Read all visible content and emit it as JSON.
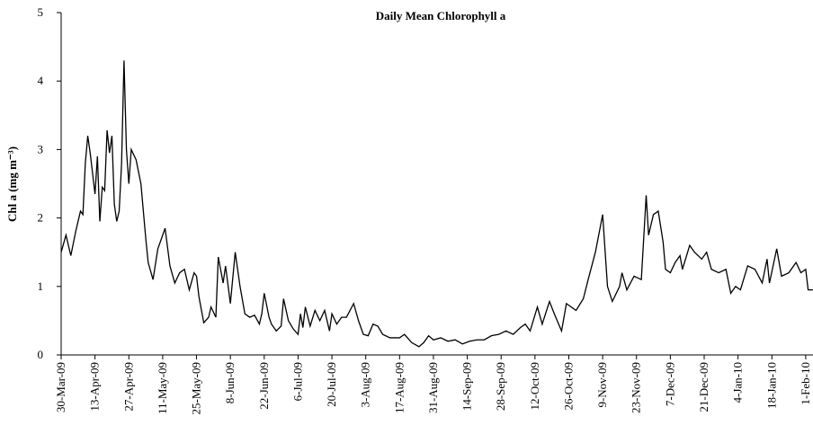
{
  "chart_data": {
    "type": "line",
    "title": "Daily Mean Chlorophyll a",
    "ylabel": "Chl a (mg m⁻³)",
    "color": "#000000",
    "x": [
      "2009-03-30",
      "2009-04-01",
      "2009-04-03",
      "2009-04-05",
      "2009-04-07",
      "2009-04-08",
      "2009-04-09",
      "2009-04-10",
      "2009-04-11",
      "2009-04-13",
      "2009-04-14",
      "2009-04-15",
      "2009-04-16",
      "2009-04-17",
      "2009-04-18",
      "2009-04-19",
      "2009-04-20",
      "2009-04-21",
      "2009-04-22",
      "2009-04-23",
      "2009-04-24",
      "2009-04-25",
      "2009-04-26",
      "2009-04-27",
      "2009-04-28",
      "2009-04-30",
      "2009-05-02",
      "2009-05-04",
      "2009-05-05",
      "2009-05-07",
      "2009-05-09",
      "2009-05-12",
      "2009-05-14",
      "2009-05-16",
      "2009-05-18",
      "2009-05-20",
      "2009-05-22",
      "2009-05-24",
      "2009-05-25",
      "2009-05-26",
      "2009-05-28",
      "2009-05-30",
      "2009-05-31",
      "2009-06-02",
      "2009-06-03",
      "2009-06-05",
      "2009-06-06",
      "2009-06-08",
      "2009-06-10",
      "2009-06-12",
      "2009-06-14",
      "2009-06-16",
      "2009-06-18",
      "2009-06-20",
      "2009-06-21",
      "2009-06-22",
      "2009-06-24",
      "2009-06-25",
      "2009-06-27",
      "2009-06-29",
      "2009-06-30",
      "2009-07-02",
      "2009-07-04",
      "2009-07-06",
      "2009-07-07",
      "2009-07-08",
      "2009-07-09",
      "2009-07-11",
      "2009-07-13",
      "2009-07-15",
      "2009-07-17",
      "2009-07-19",
      "2009-07-20",
      "2009-07-22",
      "2009-07-24",
      "2009-07-26",
      "2009-07-29",
      "2009-07-31",
      "2009-08-02",
      "2009-08-04",
      "2009-08-06",
      "2009-08-08",
      "2009-08-10",
      "2009-08-13",
      "2009-08-17",
      "2009-08-19",
      "2009-08-22",
      "2009-08-25",
      "2009-08-27",
      "2009-08-29",
      "2009-08-31",
      "2009-09-03",
      "2009-09-06",
      "2009-09-09",
      "2009-09-12",
      "2009-09-15",
      "2009-09-18",
      "2009-09-21",
      "2009-09-24",
      "2009-09-27",
      "2009-09-30",
      "2009-10-03",
      "2009-10-06",
      "2009-10-08",
      "2009-10-10",
      "2009-10-13",
      "2009-10-15",
      "2009-10-18",
      "2009-10-20",
      "2009-10-23",
      "2009-10-25",
      "2009-10-29",
      "2009-11-01",
      "2009-11-03",
      "2009-11-06",
      "2009-11-09",
      "2009-11-11",
      "2009-11-13",
      "2009-11-16",
      "2009-11-17",
      "2009-11-19",
      "2009-11-22",
      "2009-11-25",
      "2009-11-27",
      "2009-11-28",
      "2009-11-30",
      "2009-12-02",
      "2009-12-04",
      "2009-12-05",
      "2009-12-07",
      "2009-12-09",
      "2009-12-11",
      "2009-12-12",
      "2009-12-15",
      "2009-12-17",
      "2009-12-20",
      "2009-12-22",
      "2009-12-24",
      "2009-12-27",
      "2009-12-30",
      "2010-01-01",
      "2010-01-03",
      "2010-01-05",
      "2010-01-08",
      "2010-01-11",
      "2010-01-14",
      "2010-01-16",
      "2010-01-17",
      "2010-01-20",
      "2010-01-22",
      "2010-01-25",
      "2010-01-28",
      "2010-01-30",
      "2010-02-01",
      "2010-02-02",
      "2010-02-04"
    ],
    "values": [
      1.5,
      1.75,
      1.45,
      1.8,
      2.1,
      2.05,
      2.8,
      3.2,
      2.95,
      2.35,
      2.9,
      1.95,
      2.45,
      2.4,
      3.28,
      2.95,
      3.2,
      2.2,
      1.95,
      2.1,
      2.8,
      4.3,
      3.0,
      2.5,
      3.0,
      2.85,
      2.5,
      1.7,
      1.35,
      1.1,
      1.55,
      1.85,
      1.3,
      1.05,
      1.2,
      1.25,
      0.95,
      1.2,
      1.15,
      0.85,
      0.47,
      0.55,
      0.7,
      0.55,
      1.43,
      1.05,
      1.3,
      0.75,
      1.5,
      1.0,
      0.6,
      0.55,
      0.58,
      0.45,
      0.6,
      0.9,
      0.55,
      0.45,
      0.35,
      0.42,
      0.82,
      0.5,
      0.38,
      0.3,
      0.6,
      0.4,
      0.7,
      0.42,
      0.65,
      0.5,
      0.65,
      0.35,
      0.6,
      0.45,
      0.55,
      0.55,
      0.75,
      0.5,
      0.3,
      0.28,
      0.45,
      0.42,
      0.3,
      0.25,
      0.25,
      0.3,
      0.18,
      0.12,
      0.18,
      0.28,
      0.22,
      0.25,
      0.2,
      0.22,
      0.16,
      0.2,
      0.22,
      0.22,
      0.28,
      0.3,
      0.35,
      0.3,
      0.4,
      0.45,
      0.35,
      0.7,
      0.45,
      0.78,
      0.6,
      0.35,
      0.75,
      0.65,
      0.82,
      1.1,
      1.5,
      2.05,
      1.0,
      0.78,
      1.0,
      1.2,
      0.95,
      1.15,
      1.1,
      2.33,
      1.75,
      2.05,
      2.1,
      1.65,
      1.25,
      1.2,
      1.35,
      1.45,
      1.25,
      1.6,
      1.5,
      1.4,
      1.5,
      1.25,
      1.2,
      1.25,
      0.9,
      1.0,
      0.95,
      1.3,
      1.25,
      1.05,
      1.4,
      1.05,
      1.55,
      1.15,
      1.2,
      1.35,
      1.2,
      1.25,
      0.95,
      0.95
    ],
    "xlim": [
      "2009-03-30",
      "2010-02-04"
    ],
    "xticks": [
      {
        "value": "2009-03-30",
        "label": "30-Mar-09"
      },
      {
        "value": "2009-04-13",
        "label": "13-Apr-09"
      },
      {
        "value": "2009-04-27",
        "label": "27-Apr-09"
      },
      {
        "value": "2009-05-11",
        "label": "11-May-09"
      },
      {
        "value": "2009-05-25",
        "label": "25-May-09"
      },
      {
        "value": "2009-06-08",
        "label": "8-Jun-09"
      },
      {
        "value": "2009-06-22",
        "label": "22-Jun-09"
      },
      {
        "value": "2009-07-06",
        "label": "6-Jul-09"
      },
      {
        "value": "2009-07-20",
        "label": "20-Jul-09"
      },
      {
        "value": "2009-08-03",
        "label": "3-Aug-09"
      },
      {
        "value": "2009-08-17",
        "label": "17-Aug-09"
      },
      {
        "value": "2009-08-31",
        "label": "31-Aug-09"
      },
      {
        "value": "2009-09-14",
        "label": "14-Sep-09"
      },
      {
        "value": "2009-09-28",
        "label": "28-Sep-09"
      },
      {
        "value": "2009-10-12",
        "label": "12-Oct-09"
      },
      {
        "value": "2009-10-26",
        "label": "26-Oct-09"
      },
      {
        "value": "2009-11-09",
        "label": "9-Nov-09"
      },
      {
        "value": "2009-11-23",
        "label": "23-Nov-09"
      },
      {
        "value": "2009-12-07",
        "label": "7-Dec-09"
      },
      {
        "value": "2009-12-21",
        "label": "21-Dec-09"
      },
      {
        "value": "2010-01-04",
        "label": "4-Jan-10"
      },
      {
        "value": "2010-01-18",
        "label": "18-Jan-10"
      },
      {
        "value": "2010-02-01",
        "label": "1-Feb-10"
      }
    ],
    "ylim": [
      0,
      5
    ],
    "yticks": [
      0,
      1,
      2,
      3,
      4,
      5
    ],
    "grid": false
  }
}
